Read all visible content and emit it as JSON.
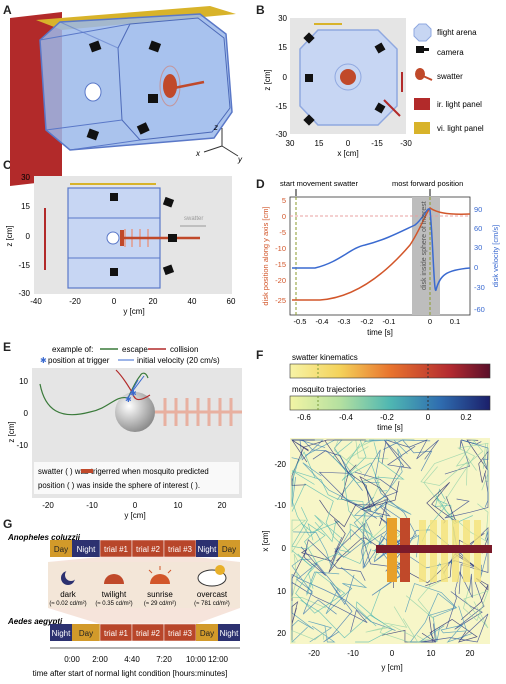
{
  "panels": {
    "A": {
      "label": "A",
      "axes": [
        "z",
        "x",
        "y"
      ]
    },
    "B": {
      "label": "B",
      "ylabel": "z [cm]",
      "xlabel": "x [cm]",
      "yticks": [
        "30",
        "15",
        "0",
        "-15",
        "-30"
      ],
      "xticks": [
        "30",
        "15",
        "0",
        "-15",
        "-30"
      ],
      "legend": [
        "flight arena",
        "camera",
        "swatter",
        "ir. light panel",
        "vi. light panel"
      ]
    },
    "C": {
      "label": "C",
      "ylabel": "z [cm]",
      "xlabel": "y [cm]",
      "yticks": [
        "30",
        "15",
        "0",
        "-15",
        "-30"
      ],
      "xticks": [
        "-40",
        "-20",
        "0",
        "20",
        "40",
        "60"
      ],
      "note": "swatter"
    },
    "D": {
      "label": "D",
      "ylabel_left": "disk position along y axis [cm]",
      "ylabel_right": "disk velocity [cm/s]",
      "xlabel": "time [s]",
      "yticks_left": [
        "5",
        "0",
        "-5",
        "-10",
        "-15",
        "-20",
        "-25"
      ],
      "yticks_right": [
        "90",
        "60",
        "30",
        "0",
        "-30",
        "-60"
      ],
      "xticks": [
        "-0.5",
        "-0.4",
        "-0.3",
        "-0.2",
        "-0.1",
        "0",
        "0.1"
      ],
      "annot_start": "start movement swatter",
      "annot_forward": "most forward position",
      "shade_text": "disk inside sphere of interest"
    },
    "E": {
      "label": "E",
      "example": "example of:",
      "escape": "escape",
      "collision": "collision",
      "trigger": "position at trigger",
      "velocity": "initial velocity (20 cm/s)",
      "ylabel": "z [cm]",
      "xlabel": "y [cm]",
      "yticks": [
        "10",
        "0",
        "-10"
      ],
      "xticks": [
        "-20",
        "-10",
        "0",
        "10",
        "20"
      ],
      "caption1": "swatter (     ) was trigerred when mosquito predicted",
      "caption2": "position (  ) was inside the sphere of interest (  )."
    },
    "F": {
      "label": "F",
      "cb1": "swatter kinematics",
      "cb2": "mosquito trajectories",
      "cb_ticks": [
        "-0.6",
        "-0.4",
        "-0.2",
        "0",
        "0.2"
      ],
      "cb_xlabel": "time [s]",
      "ylabel": "x [cm]",
      "xlabel": "y [cm]",
      "yticks": [
        "-20",
        "-10",
        "0",
        "10",
        "20"
      ],
      "xticks": [
        "-20",
        "-10",
        "0",
        "10",
        "20"
      ]
    },
    "G": {
      "label": "G",
      "species1": "Anopheles coluzzii",
      "species2": "Aedes aegypti",
      "row1": [
        "Day",
        "Night",
        "trial #1",
        "trial #2",
        "trial #3",
        "Night",
        "Day"
      ],
      "row2": [
        "Night",
        "Day",
        "trial #1",
        "trial #2",
        "trial #3",
        "Day",
        "Night"
      ],
      "conditions": [
        {
          "name": "dark",
          "lux": "(≈ 0.02 cd/m²)"
        },
        {
          "name": "twilight",
          "lux": "(≈ 0.35 cd/m²)"
        },
        {
          "name": "sunrise",
          "lux": "(≈ 29 cd/m²)"
        },
        {
          "name": "overcast",
          "lux": "(≈ 781 cd/m²)"
        }
      ],
      "xticks": [
        "0:00",
        "2:00",
        "4:40",
        "7:20",
        "10:00",
        "12:00"
      ],
      "xlabel": "time after start of normal light condition [hours:minutes]"
    }
  },
  "colors": {
    "arena": "#9bb8ea",
    "swatter": "#c0492a",
    "ir": "#b22a2a",
    "vis": "#d8b32a",
    "night": "#2c3170",
    "day": "#d29a2a",
    "trial": "#b8462a",
    "shade": "#bdbdbd"
  }
}
